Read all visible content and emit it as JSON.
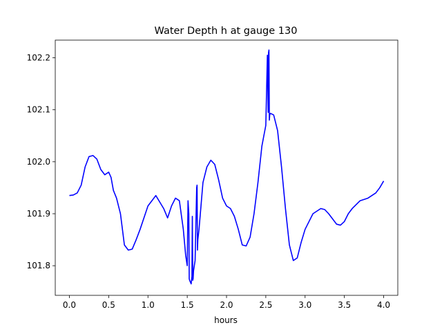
{
  "chart_data": {
    "type": "line",
    "title": "Water Depth h at gauge 130",
    "xlabel": "hours",
    "ylabel": "",
    "xlim": [
      -0.18,
      4.18
    ],
    "ylim": [
      101.743,
      102.234
    ],
    "grid": false,
    "legend": "none",
    "xticks": [
      0.0,
      0.5,
      1.0,
      1.5,
      2.0,
      2.5,
      3.0,
      3.5,
      4.0
    ],
    "xtick_labels": [
      "0.0",
      "0.5",
      "1.0",
      "1.5",
      "2.0",
      "2.5",
      "3.0",
      "3.5",
      "4.0"
    ],
    "yticks": [
      101.8,
      101.9,
      102.0,
      102.1,
      102.2
    ],
    "ytick_labels": [
      "101.8",
      "101.9",
      "102.0",
      "102.1",
      "102.2"
    ],
    "series": [
      {
        "name": "",
        "color": "#0000ff",
        "x": [
          0.0,
          0.05,
          0.1,
          0.15,
          0.2,
          0.25,
          0.3,
          0.35,
          0.4,
          0.45,
          0.5,
          0.53,
          0.56,
          0.6,
          0.65,
          0.7,
          0.75,
          0.8,
          0.85,
          0.9,
          1.0,
          1.1,
          1.2,
          1.25,
          1.3,
          1.35,
          1.4,
          1.45,
          1.48,
          1.5,
          1.51,
          1.52,
          1.525,
          1.53,
          1.55,
          1.56,
          1.565,
          1.57,
          1.575,
          1.58,
          1.6,
          1.62,
          1.625,
          1.63,
          1.635,
          1.65,
          1.7,
          1.75,
          1.8,
          1.85,
          1.9,
          1.95,
          2.0,
          2.05,
          2.1,
          2.15,
          2.2,
          2.25,
          2.3,
          2.35,
          2.4,
          2.45,
          2.5,
          2.52,
          2.53,
          2.535,
          2.54,
          2.545,
          2.55,
          2.555,
          2.56,
          2.6,
          2.65,
          2.7,
          2.75,
          2.8,
          2.85,
          2.9,
          2.95,
          3.0,
          3.1,
          3.2,
          3.25,
          3.3,
          3.35,
          3.4,
          3.45,
          3.5,
          3.55,
          3.6,
          3.7,
          3.8,
          3.85,
          3.9,
          3.95,
          4.0
        ],
        "y": [
          101.935,
          101.936,
          101.94,
          101.955,
          101.99,
          102.01,
          102.012,
          102.005,
          101.985,
          101.975,
          101.98,
          101.97,
          101.945,
          101.93,
          101.9,
          101.84,
          101.83,
          101.832,
          101.85,
          101.87,
          101.915,
          101.935,
          101.91,
          101.892,
          101.915,
          101.93,
          101.925,
          101.87,
          101.82,
          101.8,
          101.925,
          101.9,
          101.775,
          101.772,
          101.765,
          101.78,
          101.895,
          101.772,
          101.775,
          101.79,
          101.81,
          101.95,
          101.955,
          101.83,
          101.85,
          101.87,
          101.96,
          101.99,
          102.003,
          101.995,
          101.965,
          101.93,
          101.915,
          101.91,
          101.895,
          101.87,
          101.84,
          101.838,
          101.855,
          101.9,
          101.96,
          102.03,
          102.07,
          102.205,
          102.095,
          102.21,
          102.215,
          102.08,
          102.09,
          102.092,
          102.093,
          102.09,
          102.06,
          101.99,
          101.91,
          101.84,
          101.81,
          101.815,
          101.845,
          101.87,
          101.9,
          101.91,
          101.908,
          101.9,
          101.89,
          101.88,
          101.878,
          101.885,
          101.9,
          101.91,
          101.925,
          101.93,
          101.935,
          101.94,
          101.95,
          101.963
        ]
      }
    ]
  }
}
